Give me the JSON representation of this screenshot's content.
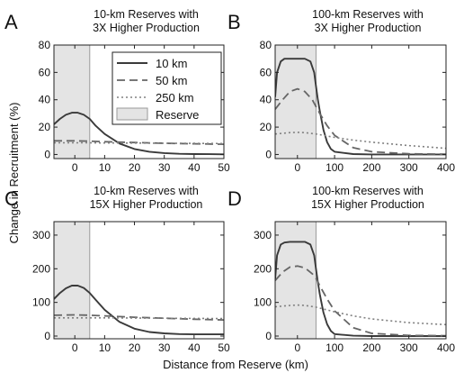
{
  "figure": {
    "xlabel": "Distance from Reserve (km)",
    "ylabel": "Change in Recruitment (%)"
  },
  "colors": {
    "line": "#3c3c3c",
    "reserve_fill": "#e4e4e4",
    "reserve_edge": "#9a9a9a"
  },
  "legend": {
    "placement": "top-right of panel A",
    "entries": [
      {
        "label": "10 km",
        "style": "solid"
      },
      {
        "label": "50 km",
        "style": "dashed"
      },
      {
        "label": "250 km",
        "style": "dotted"
      },
      {
        "label": "Reserve",
        "style": "patch"
      }
    ]
  },
  "chart_data": [
    {
      "panel_letter": "A",
      "type": "line",
      "title": "10-km Reserves with\n3X Higher Production",
      "xlim": [
        -7,
        50
      ],
      "ylim": [
        -3,
        80
      ],
      "xticks": [
        0,
        10,
        20,
        30,
        40,
        50
      ],
      "yticks": [
        0,
        20,
        40,
        60,
        80
      ],
      "reserve": [
        -7,
        5
      ],
      "series": [
        {
          "name": "10 km",
          "style": "solid",
          "x": [
            -7,
            -5,
            -3,
            -1,
            1,
            3,
            5,
            7,
            10,
            15,
            20,
            25,
            30,
            35,
            40,
            45,
            50
          ],
          "y": [
            22,
            26,
            29,
            30.5,
            30.5,
            29,
            26,
            21,
            15,
            8,
            4,
            2,
            1,
            0.5,
            0.3,
            0.2,
            0.1
          ]
        },
        {
          "name": "50 km",
          "style": "dashed",
          "x": [
            -7,
            0,
            5,
            10,
            20,
            30,
            40,
            50
          ],
          "y": [
            10,
            10,
            9.7,
            9.3,
            8.7,
            8.2,
            7.8,
            7.5
          ]
        },
        {
          "name": "250 km",
          "style": "dotted",
          "x": [
            -7,
            0,
            5,
            10,
            20,
            30,
            40,
            50
          ],
          "y": [
            8.5,
            8.5,
            8.5,
            8.4,
            8.3,
            8.2,
            8.1,
            8.0
          ]
        }
      ]
    },
    {
      "panel_letter": "B",
      "type": "line",
      "title": "100-km Reserves with\n3X Higher Production",
      "xlim": [
        -60,
        400
      ],
      "ylim": [
        -3,
        80
      ],
      "xticks": [
        0,
        100,
        200,
        300,
        400
      ],
      "yticks": [
        0,
        20,
        40,
        60,
        80
      ],
      "reserve": [
        -60,
        50
      ],
      "series": [
        {
          "name": "10 km",
          "style": "solid",
          "x": [
            -60,
            -55,
            -45,
            -35,
            -20,
            0,
            20,
            35,
            45,
            50,
            55,
            60,
            70,
            80,
            90,
            100,
            150,
            200,
            300,
            400
          ],
          "y": [
            42,
            60,
            68,
            70,
            70,
            70,
            70,
            68,
            60,
            50,
            40,
            32,
            18,
            9,
            4,
            2,
            0.3,
            0,
            0,
            0
          ]
        },
        {
          "name": "50 km",
          "style": "dashed",
          "x": [
            -60,
            -40,
            -20,
            0,
            20,
            40,
            50,
            60,
            80,
            100,
            150,
            200,
            300,
            400
          ],
          "y": [
            33,
            40,
            46,
            48,
            46,
            40,
            35,
            30,
            21,
            14,
            5,
            2,
            0.5,
            0.2
          ]
        },
        {
          "name": "250 km",
          "style": "dotted",
          "x": [
            -60,
            -20,
            0,
            20,
            50,
            100,
            150,
            200,
            300,
            400
          ],
          "y": [
            15,
            16,
            16.2,
            16,
            15,
            12.5,
            10.5,
            9,
            6.5,
            4.5
          ]
        }
      ]
    },
    {
      "panel_letter": "C",
      "type": "line",
      "title": "10-km Reserves with\n15X Higher Production",
      "xlim": [
        -7,
        50
      ],
      "ylim": [
        -8,
        340
      ],
      "xticks": [
        0,
        10,
        20,
        30,
        40,
        50
      ],
      "yticks": [
        0,
        100,
        200,
        300
      ],
      "reserve": [
        -7,
        5
      ],
      "series": [
        {
          "name": "10 km",
          "style": "solid",
          "x": [
            -7,
            -5,
            -3,
            -1,
            1,
            3,
            5,
            7,
            10,
            15,
            20,
            25,
            30,
            35,
            40,
            45,
            50
          ],
          "y": [
            110,
            128,
            142,
            150,
            150,
            143,
            128,
            108,
            78,
            42,
            22,
            12,
            8,
            6,
            5,
            5,
            5
          ]
        },
        {
          "name": "50 km",
          "style": "dashed",
          "x": [
            -7,
            0,
            5,
            10,
            20,
            30,
            40,
            50
          ],
          "y": [
            62,
            63,
            62,
            60,
            56,
            53,
            50,
            48
          ]
        },
        {
          "name": "250 km",
          "style": "dotted",
          "x": [
            -7,
            0,
            5,
            10,
            20,
            30,
            40,
            50
          ],
          "y": [
            54,
            54,
            54,
            54,
            53.5,
            53,
            52.5,
            52
          ]
        }
      ]
    },
    {
      "panel_letter": "D",
      "type": "line",
      "title": "100-km Reserves with\n15X Higher Production",
      "xlim": [
        -60,
        400
      ],
      "ylim": [
        -8,
        340
      ],
      "xticks": [
        0,
        100,
        200,
        300,
        400
      ],
      "yticks": [
        0,
        100,
        200,
        300
      ],
      "reserve": [
        -60,
        50
      ],
      "series": [
        {
          "name": "10 km",
          "style": "solid",
          "x": [
            -60,
            -55,
            -45,
            -35,
            -20,
            0,
            20,
            35,
            45,
            50,
            55,
            60,
            70,
            80,
            90,
            100,
            150,
            200,
            300,
            400
          ],
          "y": [
            170,
            240,
            272,
            278,
            280,
            280,
            280,
            272,
            240,
            200,
            160,
            125,
            70,
            35,
            15,
            6,
            1,
            0,
            0,
            0
          ]
        },
        {
          "name": "50 km",
          "style": "dashed",
          "x": [
            -60,
            -40,
            -20,
            0,
            20,
            40,
            50,
            60,
            80,
            100,
            150,
            200,
            300,
            400
          ],
          "y": [
            165,
            190,
            205,
            208,
            203,
            185,
            172,
            150,
            110,
            75,
            25,
            8,
            2,
            1
          ]
        },
        {
          "name": "250 km",
          "style": "dotted",
          "x": [
            -60,
            -20,
            0,
            20,
            50,
            100,
            150,
            200,
            300,
            400
          ],
          "y": [
            87,
            91,
            92,
            91,
            86,
            72,
            60,
            51,
            40,
            34
          ]
        }
      ]
    }
  ]
}
